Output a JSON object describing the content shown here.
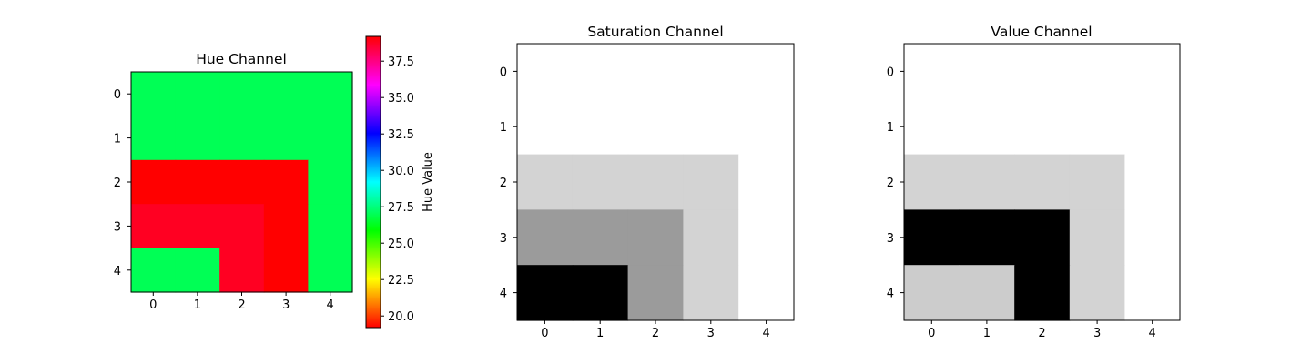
{
  "chart_data": [
    {
      "type": "heatmap",
      "title": "Hue Channel",
      "colormap": "hsv",
      "x": [
        0,
        1,
        2,
        3,
        4
      ],
      "y": [
        0,
        1,
        2,
        3,
        4
      ],
      "matrix": [
        [
          25.5,
          25.5,
          25.5,
          25.5,
          25.5
        ],
        [
          25.5,
          25.5,
          25.5,
          25.5,
          25.5
        ],
        [
          19.5,
          19.5,
          19.5,
          19.5,
          25.5
        ],
        [
          19.8,
          19.8,
          19.8,
          19.5,
          25.5
        ],
        [
          25.5,
          25.5,
          19.8,
          19.5,
          25.5
        ]
      ],
      "cells": [
        [
          "#00ff55",
          "#00ff55",
          "#00ff55",
          "#00ff55",
          "#00ff55"
        ],
        [
          "#00ff55",
          "#00ff55",
          "#00ff55",
          "#00ff55",
          "#00ff55"
        ],
        [
          "#ff0000",
          "#ff0000",
          "#ff0000",
          "#ff0000",
          "#00ff55"
        ],
        [
          "#ff0022",
          "#ff0022",
          "#ff0022",
          "#ff0000",
          "#00ff55"
        ],
        [
          "#00ff55",
          "#00ff55",
          "#ff0022",
          "#ff0000",
          "#00ff55"
        ]
      ],
      "colorbar": {
        "label": "Hue Value",
        "range": [
          19.2,
          39.2
        ],
        "ticks": [
          20.0,
          22.5,
          25.0,
          27.5,
          30.0,
          32.5,
          35.0,
          37.5
        ],
        "tick_labels": [
          "20.0",
          "22.5",
          "25.0",
          "27.5",
          "30.0",
          "32.5",
          "35.0",
          "37.5"
        ]
      }
    },
    {
      "type": "heatmap",
      "title": "Saturation Channel",
      "colormap": "gray",
      "x": [
        0,
        1,
        2,
        3,
        4
      ],
      "y": [
        0,
        1,
        2,
        3,
        4
      ],
      "cells": [
        [
          "#ffffff",
          "#ffffff",
          "#ffffff",
          "#ffffff",
          "#ffffff"
        ],
        [
          "#ffffff",
          "#ffffff",
          "#ffffff",
          "#ffffff",
          "#ffffff"
        ],
        [
          "#d3d3d3",
          "#d3d3d3",
          "#d3d3d3",
          "#d3d3d3",
          "#ffffff"
        ],
        [
          "#9b9b9b",
          "#9b9b9b",
          "#9b9b9b",
          "#d3d3d3",
          "#ffffff"
        ],
        [
          "#000000",
          "#000000",
          "#9b9b9b",
          "#d3d3d3",
          "#ffffff"
        ]
      ]
    },
    {
      "type": "heatmap",
      "title": "Value Channel",
      "colormap": "gray",
      "x": [
        0,
        1,
        2,
        3,
        4
      ],
      "y": [
        0,
        1,
        2,
        3,
        4
      ],
      "cells": [
        [
          "#ffffff",
          "#ffffff",
          "#ffffff",
          "#ffffff",
          "#ffffff"
        ],
        [
          "#ffffff",
          "#ffffff",
          "#ffffff",
          "#ffffff",
          "#ffffff"
        ],
        [
          "#d3d3d3",
          "#d3d3d3",
          "#d3d3d3",
          "#d3d3d3",
          "#ffffff"
        ],
        [
          "#000000",
          "#000000",
          "#000000",
          "#d3d3d3",
          "#ffffff"
        ],
        [
          "#cccccc",
          "#cccccc",
          "#000000",
          "#d3d3d3",
          "#ffffff"
        ]
      ]
    }
  ]
}
